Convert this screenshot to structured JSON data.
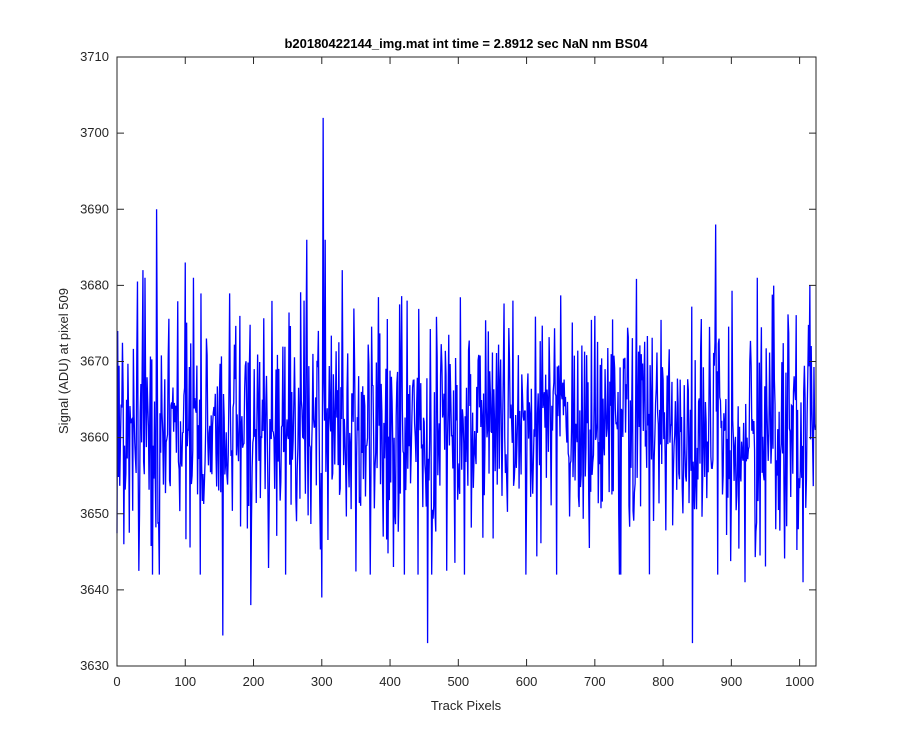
{
  "chart_data": {
    "type": "line",
    "title": "b20180422144_img.mat int time = 2.8912 sec  NaN nm BS04",
    "xlabel": "Track Pixels",
    "ylabel": "Signal (ADU) at pixel 509",
    "xlim": [
      0,
      1024
    ],
    "ylim": [
      3630,
      3710
    ],
    "x_ticks": [
      0,
      100,
      200,
      300,
      400,
      500,
      600,
      700,
      800,
      900,
      1000
    ],
    "y_ticks": [
      3630,
      3640,
      3650,
      3660,
      3670,
      3680,
      3690,
      3700,
      3710
    ],
    "grid": false,
    "line_color": "#0000ff",
    "n_points": 1024,
    "baseline_mean": 3661,
    "typical_range": [
      3645,
      3678
    ],
    "notable_points": [
      {
        "x": 1,
        "y": 3674
      },
      {
        "x": 10,
        "y": 3646
      },
      {
        "x": 38,
        "y": 3682
      },
      {
        "x": 52,
        "y": 3642
      },
      {
        "x": 58,
        "y": 3690
      },
      {
        "x": 62,
        "y": 3642
      },
      {
        "x": 100,
        "y": 3683
      },
      {
        "x": 122,
        "y": 3642
      },
      {
        "x": 155,
        "y": 3634
      },
      {
        "x": 180,
        "y": 3676
      },
      {
        "x": 196,
        "y": 3638
      },
      {
        "x": 274,
        "y": 3678
      },
      {
        "x": 278,
        "y": 3686
      },
      {
        "x": 300,
        "y": 3639
      },
      {
        "x": 302,
        "y": 3702
      },
      {
        "x": 305,
        "y": 3686
      },
      {
        "x": 330,
        "y": 3682
      },
      {
        "x": 405,
        "y": 3643
      },
      {
        "x": 455,
        "y": 3633
      },
      {
        "x": 580,
        "y": 3678
      },
      {
        "x": 700,
        "y": 3676
      },
      {
        "x": 843,
        "y": 3633
      },
      {
        "x": 877,
        "y": 3688
      },
      {
        "x": 880,
        "y": 3682
      },
      {
        "x": 880,
        "y": 3642
      },
      {
        "x": 920,
        "y": 3641
      },
      {
        "x": 1005,
        "y": 3641
      },
      {
        "x": 1015,
        "y": 3680
      },
      {
        "x": 1023,
        "y": 3661
      }
    ]
  }
}
